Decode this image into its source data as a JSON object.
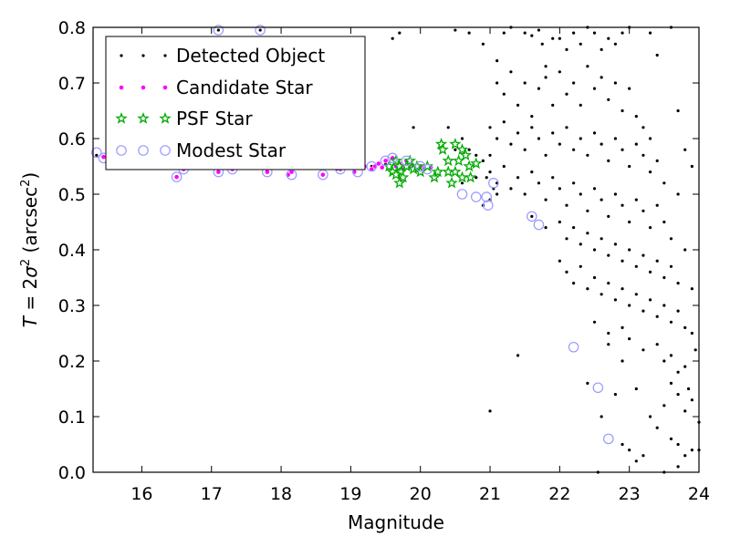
{
  "chart_data": {
    "type": "scatter",
    "xlabel": "Magnitude",
    "ylabel_parts": [
      "T",
      " = 2",
      "σ",
      "2",
      " (arcsec",
      "2",
      ")"
    ],
    "xlim": [
      15.3,
      24
    ],
    "ylim": [
      0,
      0.8
    ],
    "xticks": [
      16,
      17,
      18,
      19,
      20,
      21,
      22,
      23,
      24
    ],
    "yticks": [
      0.0,
      0.1,
      0.2,
      0.3,
      0.4,
      0.5,
      0.6,
      0.7,
      0.8
    ],
    "xtick_labels": [
      "16",
      "17",
      "18",
      "19",
      "20",
      "21",
      "22",
      "23",
      "24"
    ],
    "ytick_labels": [
      "0.0",
      "0.1",
      "0.2",
      "0.3",
      "0.4",
      "0.5",
      "0.6",
      "0.7",
      "0.8"
    ],
    "grid": false,
    "legend_position": "upper-left",
    "series": [
      {
        "name": "Detected Object",
        "marker": "dot",
        "color": "#000000",
        "points": [
          [
            15.35,
            0.57
          ],
          [
            15.45,
            0.565
          ],
          [
            15.9,
            0.56
          ],
          [
            16.3,
            0.56
          ],
          [
            16.6,
            0.545
          ],
          [
            17.1,
            0.795
          ],
          [
            17.7,
            0.795
          ],
          [
            17.3,
            0.545
          ],
          [
            18.0,
            0.55
          ],
          [
            18.4,
            0.55
          ],
          [
            18.8,
            0.545
          ],
          [
            19.1,
            0.55
          ],
          [
            19.3,
            0.55
          ],
          [
            19.5,
            0.555
          ],
          [
            19.6,
            0.78
          ],
          [
            19.7,
            0.79
          ],
          [
            19.9,
            0.62
          ],
          [
            20.4,
            0.62
          ],
          [
            20.7,
            0.79
          ],
          [
            21.0,
            0.11
          ],
          [
            21.4,
            0.21
          ],
          [
            20.5,
            0.795
          ],
          [
            20.9,
            0.77
          ],
          [
            21.1,
            0.74
          ],
          [
            21.2,
            0.79
          ],
          [
            21.3,
            0.8
          ],
          [
            21.5,
            0.79
          ],
          [
            21.6,
            0.785
          ],
          [
            21.7,
            0.795
          ],
          [
            21.75,
            0.77
          ],
          [
            21.8,
            0.73
          ],
          [
            21.9,
            0.78
          ],
          [
            22.0,
            0.78
          ],
          [
            22.1,
            0.76
          ],
          [
            22.2,
            0.79
          ],
          [
            22.3,
            0.77
          ],
          [
            22.4,
            0.8
          ],
          [
            22.5,
            0.79
          ],
          [
            22.6,
            0.76
          ],
          [
            22.7,
            0.78
          ],
          [
            22.8,
            0.77
          ],
          [
            22.9,
            0.79
          ],
          [
            23.0,
            0.8
          ],
          [
            23.3,
            0.79
          ],
          [
            23.4,
            0.75
          ],
          [
            23.6,
            0.8
          ],
          [
            23.7,
            0.65
          ],
          [
            23.8,
            0.58
          ],
          [
            23.9,
            0.55
          ],
          [
            21.1,
            0.7
          ],
          [
            21.2,
            0.68
          ],
          [
            21.3,
            0.72
          ],
          [
            21.4,
            0.66
          ],
          [
            21.5,
            0.7
          ],
          [
            21.6,
            0.64
          ],
          [
            21.7,
            0.69
          ],
          [
            21.8,
            0.71
          ],
          [
            21.9,
            0.66
          ],
          [
            22.0,
            0.72
          ],
          [
            22.1,
            0.68
          ],
          [
            22.2,
            0.7
          ],
          [
            22.3,
            0.66
          ],
          [
            22.4,
            0.73
          ],
          [
            22.5,
            0.69
          ],
          [
            22.6,
            0.71
          ],
          [
            22.7,
            0.67
          ],
          [
            22.8,
            0.7
          ],
          [
            22.9,
            0.65
          ],
          [
            23.0,
            0.69
          ],
          [
            23.1,
            0.64
          ],
          [
            23.2,
            0.62
          ],
          [
            23.3,
            0.6
          ],
          [
            21.0,
            0.62
          ],
          [
            21.1,
            0.6
          ],
          [
            21.2,
            0.63
          ],
          [
            21.3,
            0.59
          ],
          [
            21.4,
            0.61
          ],
          [
            21.5,
            0.58
          ],
          [
            21.6,
            0.62
          ],
          [
            21.7,
            0.6
          ],
          [
            21.8,
            0.57
          ],
          [
            21.9,
            0.61
          ],
          [
            22.0,
            0.59
          ],
          [
            22.1,
            0.62
          ],
          [
            22.2,
            0.58
          ],
          [
            22.3,
            0.6
          ],
          [
            22.4,
            0.57
          ],
          [
            22.5,
            0.61
          ],
          [
            22.6,
            0.59
          ],
          [
            22.7,
            0.56
          ],
          [
            22.8,
            0.6
          ],
          [
            22.9,
            0.58
          ],
          [
            23.0,
            0.55
          ],
          [
            23.1,
            0.59
          ],
          [
            23.2,
            0.57
          ],
          [
            23.3,
            0.54
          ],
          [
            23.4,
            0.56
          ],
          [
            23.5,
            0.52
          ],
          [
            21.0,
            0.54
          ],
          [
            21.1,
            0.52
          ],
          [
            21.2,
            0.55
          ],
          [
            21.3,
            0.51
          ],
          [
            21.4,
            0.53
          ],
          [
            21.5,
            0.5
          ],
          [
            21.6,
            0.54
          ],
          [
            21.7,
            0.52
          ],
          [
            21.8,
            0.49
          ],
          [
            21.9,
            0.53
          ],
          [
            22.0,
            0.51
          ],
          [
            22.1,
            0.48
          ],
          [
            22.2,
            0.52
          ],
          [
            22.3,
            0.5
          ],
          [
            22.4,
            0.47
          ],
          [
            22.5,
            0.51
          ],
          [
            22.6,
            0.49
          ],
          [
            22.7,
            0.46
          ],
          [
            22.8,
            0.5
          ],
          [
            22.9,
            0.48
          ],
          [
            23.0,
            0.45
          ],
          [
            23.1,
            0.49
          ],
          [
            23.2,
            0.47
          ],
          [
            23.3,
            0.44
          ],
          [
            23.4,
            0.48
          ],
          [
            23.5,
            0.45
          ],
          [
            23.6,
            0.42
          ],
          [
            23.7,
            0.5
          ],
          [
            23.8,
            0.4
          ],
          [
            21.6,
            0.46
          ],
          [
            21.8,
            0.44
          ],
          [
            22.0,
            0.45
          ],
          [
            22.1,
            0.42
          ],
          [
            22.2,
            0.44
          ],
          [
            22.3,
            0.41
          ],
          [
            22.4,
            0.43
          ],
          [
            22.5,
            0.4
          ],
          [
            22.6,
            0.42
          ],
          [
            22.7,
            0.39
          ],
          [
            22.8,
            0.41
          ],
          [
            22.9,
            0.38
          ],
          [
            23.0,
            0.4
          ],
          [
            23.1,
            0.37
          ],
          [
            23.2,
            0.39
          ],
          [
            23.3,
            0.36
          ],
          [
            23.4,
            0.38
          ],
          [
            23.5,
            0.35
          ],
          [
            23.6,
            0.37
          ],
          [
            23.7,
            0.34
          ],
          [
            22.0,
            0.38
          ],
          [
            22.1,
            0.36
          ],
          [
            22.2,
            0.34
          ],
          [
            22.3,
            0.37
          ],
          [
            22.4,
            0.33
          ],
          [
            22.5,
            0.35
          ],
          [
            22.6,
            0.32
          ],
          [
            22.7,
            0.34
          ],
          [
            22.8,
            0.31
          ],
          [
            22.9,
            0.33
          ],
          [
            23.0,
            0.3
          ],
          [
            23.1,
            0.32
          ],
          [
            23.2,
            0.29
          ],
          [
            23.3,
            0.31
          ],
          [
            23.4,
            0.28
          ],
          [
            23.5,
            0.3
          ],
          [
            23.6,
            0.27
          ],
          [
            23.7,
            0.29
          ],
          [
            23.8,
            0.26
          ],
          [
            23.9,
            0.25
          ],
          [
            22.5,
            0.27
          ],
          [
            22.7,
            0.25
          ],
          [
            22.9,
            0.26
          ],
          [
            23.0,
            0.24
          ],
          [
            23.2,
            0.22
          ],
          [
            23.4,
            0.23
          ],
          [
            23.5,
            0.2
          ],
          [
            23.6,
            0.21
          ],
          [
            23.7,
            0.18
          ],
          [
            23.8,
            0.19
          ],
          [
            23.6,
            0.16
          ],
          [
            23.7,
            0.14
          ],
          [
            23.5,
            0.12
          ],
          [
            23.8,
            0.11
          ],
          [
            23.9,
            0.13
          ],
          [
            23.3,
            0.1
          ],
          [
            23.4,
            0.08
          ],
          [
            23.6,
            0.06
          ],
          [
            23.7,
            0.05
          ],
          [
            23.8,
            0.03
          ],
          [
            23.9,
            0.04
          ],
          [
            23.2,
            0.03
          ],
          [
            23.0,
            0.04
          ],
          [
            23.1,
            0.02
          ],
          [
            22.9,
            0.05
          ],
          [
            22.6,
            0.1
          ],
          [
            22.8,
            0.14
          ],
          [
            23.1,
            0.15
          ],
          [
            22.9,
            0.2
          ],
          [
            22.7,
            0.23
          ],
          [
            22.4,
            0.16
          ],
          [
            22.55,
            0.0
          ],
          [
            23.5,
            0.0
          ],
          [
            23.7,
            0.01
          ],
          [
            24.0,
            0.09
          ],
          [
            24.0,
            0.04
          ],
          [
            23.9,
            0.33
          ],
          [
            23.95,
            0.22
          ],
          [
            23.85,
            0.15
          ],
          [
            20.6,
            0.6
          ],
          [
            20.5,
            0.58
          ],
          [
            20.7,
            0.58
          ],
          [
            20.8,
            0.57
          ],
          [
            20.9,
            0.56
          ],
          [
            21.0,
            0.57
          ],
          [
            20.95,
            0.53
          ],
          [
            21.05,
            0.51
          ],
          [
            21.0,
            0.49
          ],
          [
            20.9,
            0.48
          ],
          [
            21.1,
            0.5
          ],
          [
            20.6,
            0.52
          ],
          [
            20.8,
            0.53
          ]
        ]
      },
      {
        "name": "Candidate Star",
        "marker": "circle",
        "color": "#ff00ff",
        "points": [
          [
            15.45,
            0.567
          ],
          [
            16.5,
            0.531
          ],
          [
            16.6,
            0.545
          ],
          [
            17.1,
            0.54
          ],
          [
            17.3,
            0.545
          ],
          [
            17.8,
            0.54
          ],
          [
            18.1,
            0.535
          ],
          [
            18.15,
            0.54
          ],
          [
            18.6,
            0.535
          ],
          [
            18.85,
            0.545
          ],
          [
            19.05,
            0.54
          ],
          [
            19.2,
            0.55
          ],
          [
            19.3,
            0.545
          ],
          [
            19.35,
            0.55
          ],
          [
            19.4,
            0.555
          ],
          [
            19.45,
            0.548
          ],
          [
            19.5,
            0.56
          ],
          [
            19.55,
            0.552
          ],
          [
            19.6,
            0.565
          ],
          [
            19.65,
            0.55
          ],
          [
            19.7,
            0.555
          ],
          [
            19.75,
            0.545
          ],
          [
            19.8,
            0.56
          ],
          [
            19.85,
            0.55
          ],
          [
            19.9,
            0.55
          ],
          [
            19.95,
            0.545
          ],
          [
            20.0,
            0.55
          ],
          [
            20.05,
            0.545
          ],
          [
            20.15,
            0.548
          ]
        ]
      },
      {
        "name": "PSF Star",
        "marker": "star",
        "color": "#00aa00",
        "points": [
          [
            19.55,
            0.55
          ],
          [
            19.6,
            0.54
          ],
          [
            19.65,
            0.56
          ],
          [
            19.7,
            0.55
          ],
          [
            19.72,
            0.54
          ],
          [
            19.75,
            0.53
          ],
          [
            19.8,
            0.55
          ],
          [
            19.85,
            0.56
          ],
          [
            19.9,
            0.545
          ],
          [
            19.95,
            0.55
          ],
          [
            20.0,
            0.54
          ],
          [
            20.1,
            0.55
          ],
          [
            20.2,
            0.53
          ],
          [
            20.3,
            0.59
          ],
          [
            20.32,
            0.58
          ],
          [
            20.4,
            0.54
          ],
          [
            20.45,
            0.52
          ],
          [
            20.5,
            0.59
          ],
          [
            20.55,
            0.56
          ],
          [
            20.6,
            0.58
          ],
          [
            20.65,
            0.57
          ],
          [
            20.7,
            0.55
          ],
          [
            20.72,
            0.53
          ],
          [
            20.8,
            0.555
          ],
          [
            20.5,
            0.54
          ],
          [
            20.6,
            0.53
          ],
          [
            19.65,
            0.535
          ],
          [
            19.7,
            0.52
          ],
          [
            20.25,
            0.54
          ],
          [
            20.4,
            0.56
          ]
        ]
      },
      {
        "name": "Modest Star",
        "marker": "open-circle",
        "color": "#9999ff",
        "points": [
          [
            15.35,
            0.575
          ],
          [
            15.45,
            0.565
          ],
          [
            15.95,
            0.578
          ],
          [
            16.5,
            0.531
          ],
          [
            16.6,
            0.545
          ],
          [
            17.1,
            0.795
          ],
          [
            17.1,
            0.54
          ],
          [
            17.3,
            0.545
          ],
          [
            17.7,
            0.795
          ],
          [
            17.8,
            0.54
          ],
          [
            18.15,
            0.535
          ],
          [
            18.6,
            0.535
          ],
          [
            18.85,
            0.545
          ],
          [
            19.1,
            0.54
          ],
          [
            19.3,
            0.55
          ],
          [
            19.5,
            0.56
          ],
          [
            19.6,
            0.565
          ],
          [
            19.8,
            0.56
          ],
          [
            20.0,
            0.55
          ],
          [
            20.1,
            0.545
          ],
          [
            20.6,
            0.5
          ],
          [
            20.8,
            0.495
          ],
          [
            20.95,
            0.495
          ],
          [
            20.97,
            0.48
          ],
          [
            21.05,
            0.52
          ],
          [
            21.6,
            0.46
          ],
          [
            21.7,
            0.445
          ],
          [
            22.2,
            0.225
          ],
          [
            22.55,
            0.152
          ],
          [
            22.7,
            0.06
          ]
        ]
      }
    ]
  }
}
